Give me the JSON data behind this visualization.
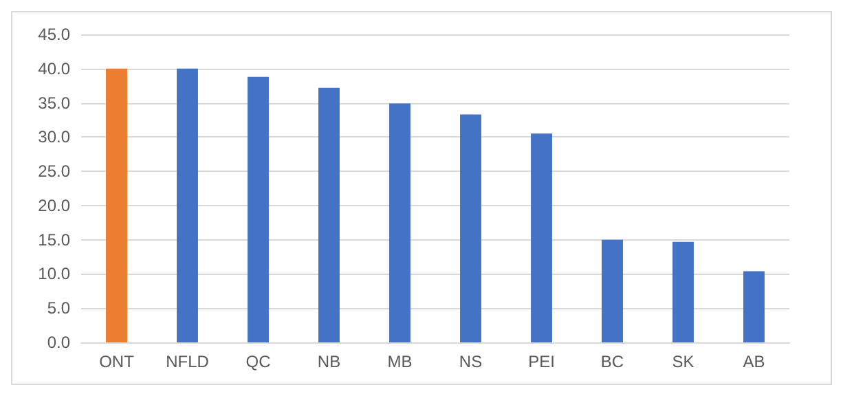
{
  "chart_data": {
    "type": "bar",
    "categories": [
      "ONT",
      "NFLD",
      "QC",
      "NB",
      "MB",
      "NS",
      "PEI",
      "BC",
      "SK",
      "AB"
    ],
    "values": [
      40.0,
      40.0,
      38.8,
      37.2,
      34.9,
      33.3,
      30.5,
      15.0,
      14.7,
      10.4
    ],
    "colors": [
      "#ed7d31",
      "#4472c4",
      "#4472c4",
      "#4472c4",
      "#4472c4",
      "#4472c4",
      "#4472c4",
      "#4472c4",
      "#4472c4",
      "#4472c4"
    ],
    "ylim": [
      0,
      45
    ],
    "yticks": [
      {
        "value": 0,
        "label": "0.0"
      },
      {
        "value": 5,
        "label": "5.0"
      },
      {
        "value": 10,
        "label": "10.0"
      },
      {
        "value": 15,
        "label": "15.0"
      },
      {
        "value": 20,
        "label": "20.0"
      },
      {
        "value": 25,
        "label": "25.0"
      },
      {
        "value": 30,
        "label": "30.0"
      },
      {
        "value": 35,
        "label": "35.0"
      },
      {
        "value": 40,
        "label": "40.0"
      },
      {
        "value": 45,
        "label": "45.0"
      }
    ],
    "grid": "y"
  }
}
